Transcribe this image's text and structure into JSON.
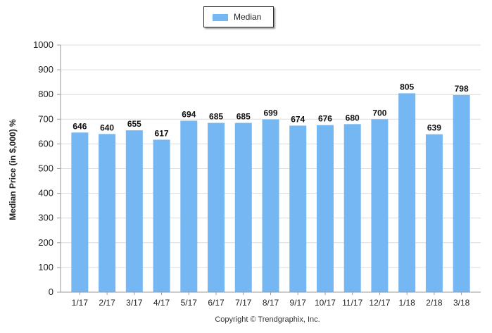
{
  "colors": {
    "bar": "#74b7f2",
    "grid": "#dcdcdc",
    "axis": "#9a9a9a",
    "text": "#222222"
  },
  "legend": {
    "label": "Median"
  },
  "footer": {
    "copyright": "Copyright © Trendgraphix, Inc."
  },
  "chart_data": {
    "type": "bar",
    "title": "",
    "xlabel": "",
    "ylabel": "Median Price (in $,000) %",
    "ylim": [
      0,
      1000
    ],
    "ytick_step": 100,
    "grid": true,
    "legend_position": "top-center",
    "categories": [
      "1/17",
      "2/17",
      "3/17",
      "4/17",
      "5/17",
      "6/17",
      "7/17",
      "8/17",
      "9/17",
      "10/17",
      "11/17",
      "12/17",
      "1/18",
      "2/18",
      "3/18"
    ],
    "series": [
      {
        "name": "Median",
        "values": [
          646,
          640,
          655,
          617,
          694,
          685,
          685,
          699,
          674,
          676,
          680,
          700,
          805,
          639,
          798
        ]
      }
    ]
  }
}
